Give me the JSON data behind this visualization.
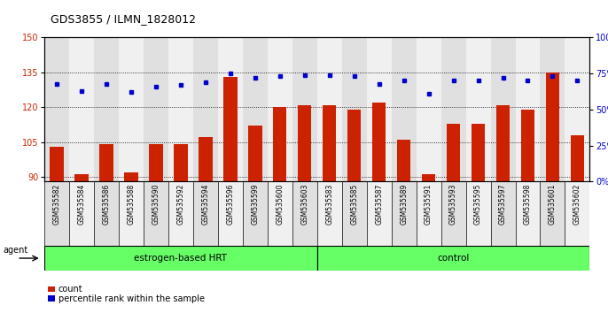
{
  "title": "GDS3855 / ILMN_1828012",
  "categories": [
    "GSM535582",
    "GSM535584",
    "GSM535586",
    "GSM535588",
    "GSM535590",
    "GSM535592",
    "GSM535594",
    "GSM535596",
    "GSM535599",
    "GSM535600",
    "GSM535603",
    "GSM535583",
    "GSM535585",
    "GSM535587",
    "GSM535589",
    "GSM535591",
    "GSM535593",
    "GSM535595",
    "GSM535597",
    "GSM535598",
    "GSM535601",
    "GSM535602"
  ],
  "bar_values": [
    103,
    91,
    104,
    92,
    104,
    104,
    107,
    133,
    112,
    120,
    121,
    121,
    119,
    122,
    106,
    91,
    113,
    113,
    121,
    119,
    135,
    108
  ],
  "percentile_values": [
    68,
    63,
    68,
    62,
    66,
    67,
    69,
    75,
    72,
    73,
    74,
    74,
    73,
    68,
    70,
    61,
    70,
    70,
    72,
    70,
    73,
    70
  ],
  "bar_color": "#cc2200",
  "dot_color": "#0000cc",
  "ylim_left": [
    88,
    150
  ],
  "ylim_right": [
    0,
    100
  ],
  "yticks_left": [
    90,
    105,
    120,
    135,
    150
  ],
  "yticks_right": [
    0,
    25,
    50,
    75,
    100
  ],
  "group1_label": "estrogen-based HRT",
  "group1_count": 11,
  "group2_label": "control",
  "group2_count": 11,
  "group_color": "#66ff66",
  "agent_label": "agent",
  "legend_bar_label": "count",
  "legend_dot_label": "percentile rank within the sample",
  "plot_bg_color": "#ffffff",
  "col_bg_odd": "#e0e0e0",
  "col_bg_even": "#f0f0f0",
  "title_fontsize": 9,
  "tick_fontsize": 7,
  "xlabel_fontsize": 5.5,
  "group_fontsize": 7.5,
  "legend_fontsize": 7,
  "agent_fontsize": 7,
  "bar_width": 0.55
}
